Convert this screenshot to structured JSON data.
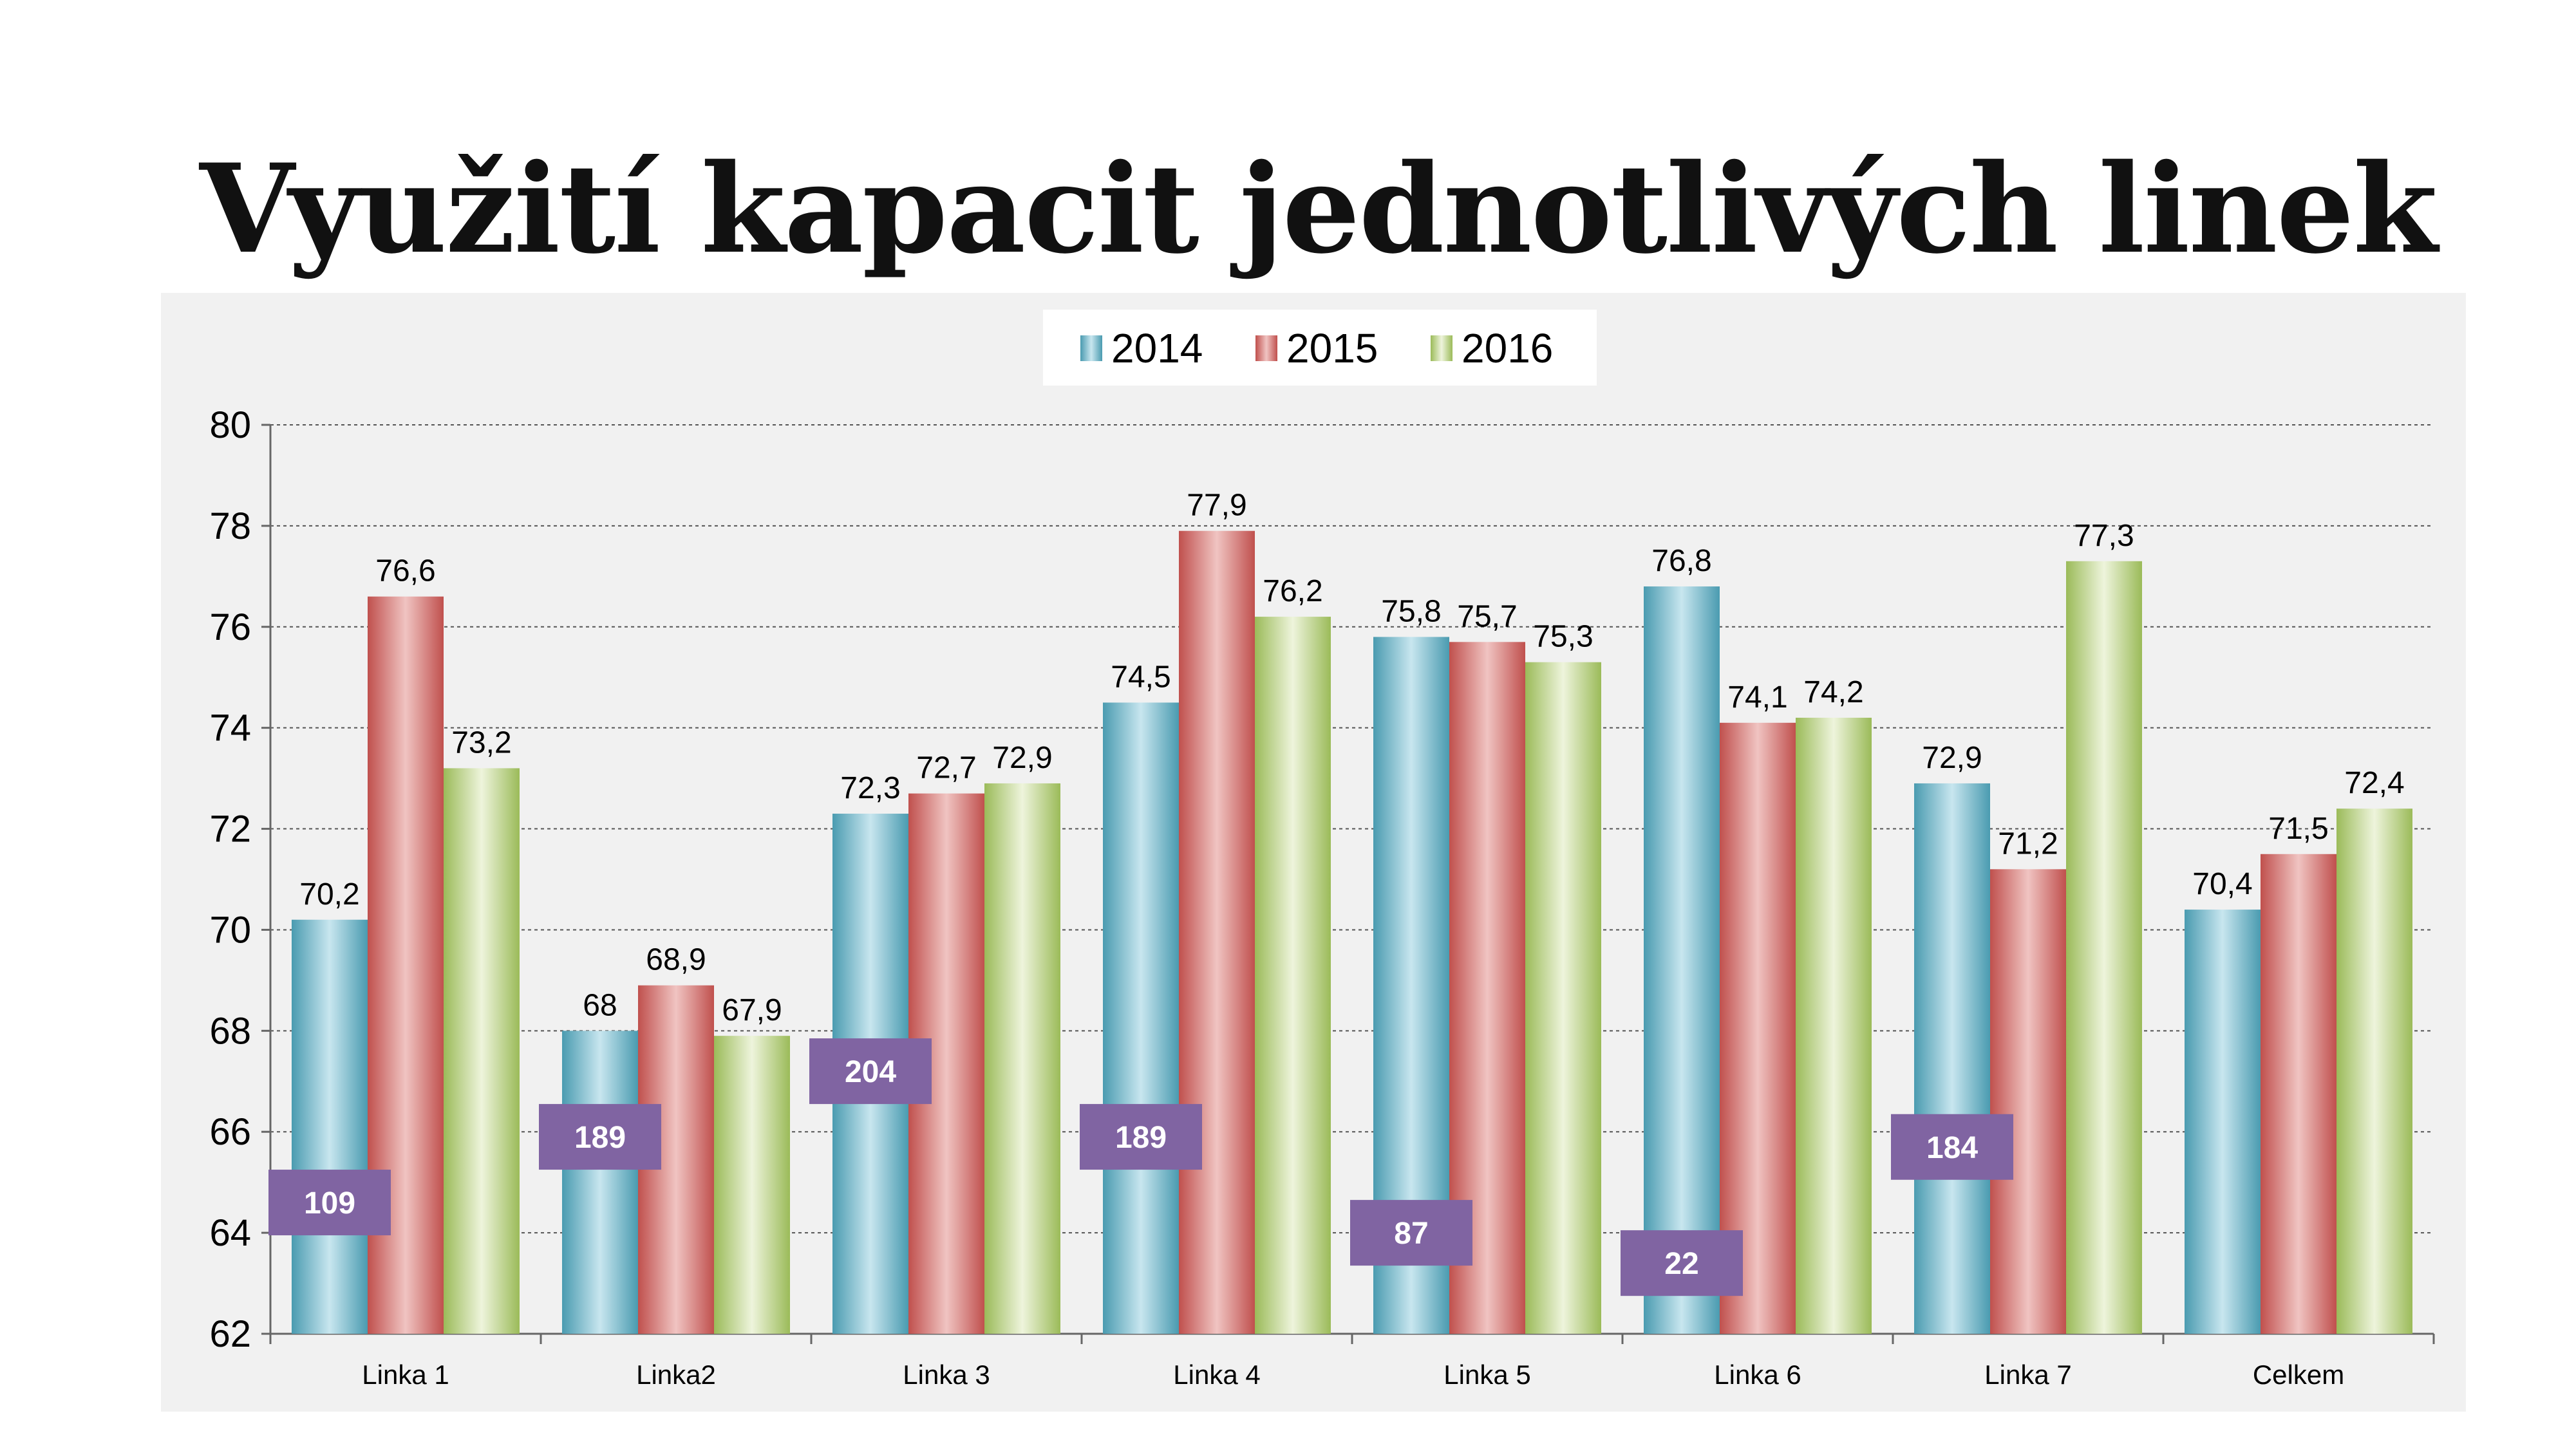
{
  "title": "Využití kapacit jednotlivých linek",
  "colors": {
    "chart_background": "#f1f1f1",
    "series_2014": "#4a9bb0",
    "series_2015": "#c0504d",
    "series_2016": "#9bbb59",
    "badge": "#8064a2"
  },
  "chart_data": {
    "type": "bar",
    "title": "",
    "xlabel": "",
    "ylabel": "",
    "ylim": [
      62,
      80
    ],
    "yticks": [
      "62",
      "64",
      "66",
      "68",
      "70",
      "72",
      "74",
      "76",
      "78",
      "80"
    ],
    "grid": true,
    "legend_position": "top-center",
    "categories": [
      "Linka 1",
      "Linka2",
      "Linka 3",
      "Linka 4",
      "Linka 5",
      "Linka 6",
      "Linka 7",
      "Celkem"
    ],
    "series": [
      {
        "name": "2014",
        "values": [
          70.2,
          68,
          72.3,
          74.5,
          75.8,
          76.8,
          72.9,
          70.4
        ],
        "labels": [
          "70,2",
          "68",
          "72,3",
          "74,5",
          "75,8",
          "76,8",
          "72,9",
          "70,4"
        ]
      },
      {
        "name": "2015",
        "values": [
          76.6,
          68.9,
          72.7,
          77.9,
          75.7,
          74.1,
          71.2,
          71.5
        ],
        "labels": [
          "76,6",
          "68,9",
          "72,7",
          "77,9",
          "75,7",
          "74,1",
          "71,2",
          "71,5"
        ]
      },
      {
        "name": "2016",
        "values": [
          73.2,
          67.9,
          72.9,
          76.2,
          75.3,
          74.2,
          77.3,
          72.4
        ],
        "labels": [
          "73,2",
          "67,9",
          "72,9",
          "76,2",
          "75,3",
          "74,2",
          "77,3",
          "72,4"
        ]
      }
    ],
    "annotations": [
      {
        "category": "Linka 1",
        "text": "109",
        "y": 64.6
      },
      {
        "category": "Linka2",
        "text": "189",
        "y": 65.9
      },
      {
        "category": "Linka 3",
        "text": "204",
        "y": 67.2
      },
      {
        "category": "Linka 4",
        "text": "189",
        "y": 65.9
      },
      {
        "category": "Linka 5",
        "text": "87",
        "y": 64.0
      },
      {
        "category": "Linka 6",
        "text": "22",
        "y": 63.4
      },
      {
        "category": "Linka 7",
        "text": "184",
        "y": 65.7
      }
    ]
  }
}
